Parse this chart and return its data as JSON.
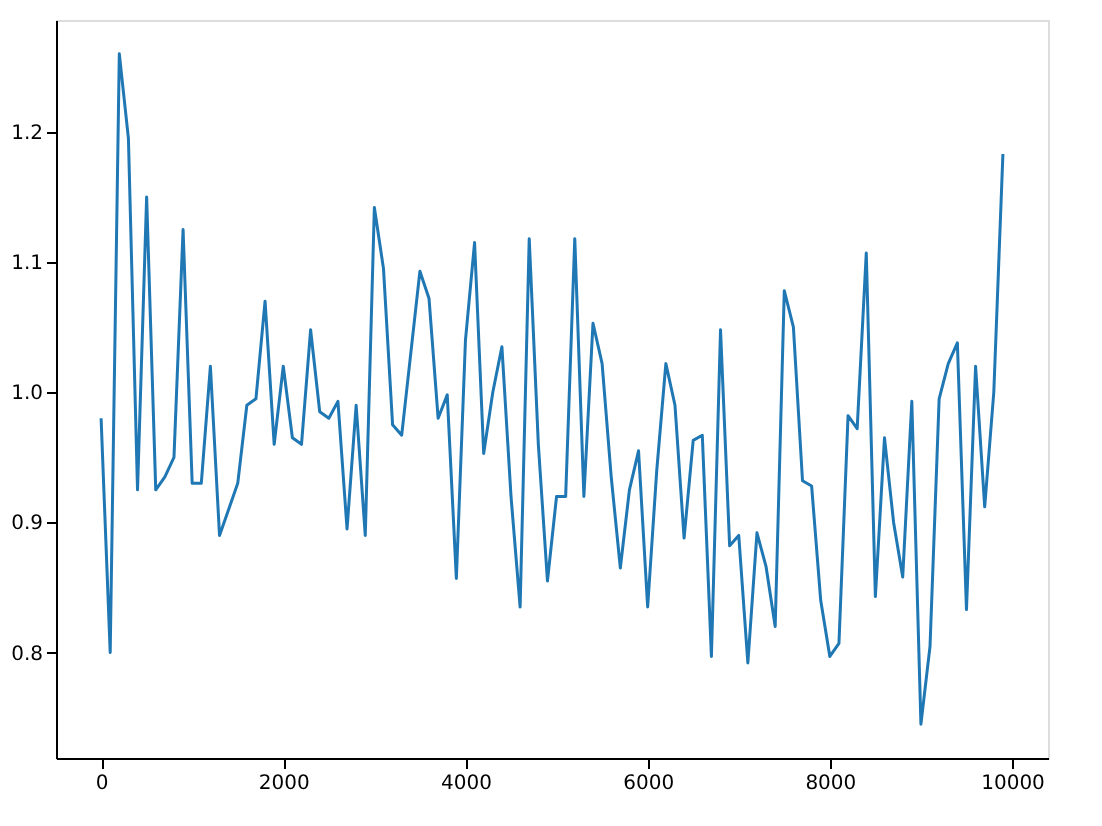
{
  "chart_data": {
    "type": "line",
    "grid": false,
    "marker": "none",
    "line_style": "solid",
    "xlim": [
      -495,
      10395
    ],
    "ylim": [
      0.719,
      1.286
    ],
    "xticks": [
      0,
      2000,
      4000,
      6000,
      8000,
      10000
    ],
    "yticks": [
      {
        "value": 0.8,
        "label": "0.8"
      },
      {
        "value": 0.9,
        "label": "0.9"
      },
      {
        "value": 1.0,
        "label": "1.0"
      },
      {
        "value": 1.1,
        "label": "1.1"
      },
      {
        "value": 1.2,
        "label": "1.2"
      }
    ],
    "x": [
      0,
      100,
      200,
      300,
      400,
      500,
      600,
      700,
      800,
      900,
      1000,
      1100,
      1200,
      1300,
      1400,
      1500,
      1600,
      1700,
      1800,
      1900,
      2000,
      2100,
      2200,
      2300,
      2400,
      2500,
      2600,
      2700,
      2800,
      2900,
      3000,
      3100,
      3200,
      3300,
      3400,
      3500,
      3600,
      3700,
      3800,
      3900,
      4000,
      4100,
      4200,
      4300,
      4400,
      4500,
      4600,
      4700,
      4800,
      4900,
      5000,
      5100,
      5200,
      5300,
      5400,
      5500,
      5600,
      5700,
      5800,
      5900,
      6000,
      6100,
      6200,
      6300,
      6400,
      6500,
      6600,
      6700,
      6800,
      6900,
      7000,
      7100,
      7200,
      7300,
      7400,
      7500,
      7600,
      7700,
      7800,
      7900,
      8000,
      8100,
      8200,
      8300,
      8400,
      8500,
      8600,
      8700,
      8800,
      8900,
      9000,
      9100,
      9200,
      9300,
      9400,
      9500,
      9600,
      9700,
      9800,
      9900
    ],
    "series": [
      {
        "color": "#1f77b4",
        "values": [
          0.98,
          0.8,
          1.26,
          1.195,
          0.925,
          1.15,
          0.925,
          0.935,
          0.95,
          1.125,
          0.93,
          0.93,
          1.02,
          0.89,
          0.91,
          0.93,
          0.99,
          0.995,
          1.07,
          0.96,
          1.02,
          0.965,
          0.96,
          1.048,
          0.985,
          0.98,
          0.993,
          0.895,
          0.99,
          0.89,
          1.142,
          1.095,
          0.975,
          0.967,
          1.03,
          1.093,
          1.072,
          0.98,
          0.998,
          0.857,
          1.04,
          1.115,
          0.953,
          1.0,
          1.035,
          0.92,
          0.835,
          1.118,
          0.96,
          0.855,
          0.92,
          0.92,
          1.118,
          0.92,
          1.053,
          1.022,
          0.935,
          0.865,
          0.925,
          0.955,
          0.835,
          0.94,
          1.022,
          0.99,
          0.888,
          0.963,
          0.967,
          0.797,
          1.048,
          0.882,
          0.89,
          0.792,
          0.892,
          0.866,
          0.82,
          1.078,
          1.05,
          0.932,
          0.928,
          0.84,
          0.797,
          0.807,
          0.982,
          0.972,
          1.107,
          0.843,
          0.965,
          0.9,
          0.858,
          0.993,
          0.745,
          0.805,
          0.995,
          1.022,
          1.038,
          0.833,
          1.02,
          0.912,
          1.0,
          1.183
        ]
      }
    ]
  }
}
